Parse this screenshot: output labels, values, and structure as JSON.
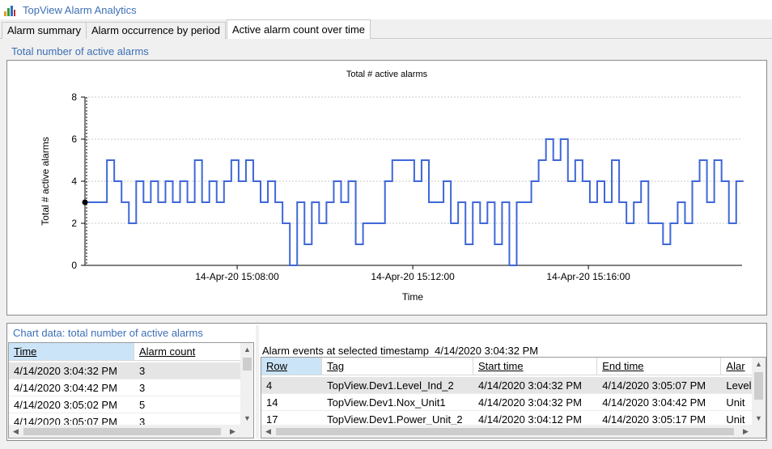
{
  "app": {
    "title": "TopView Alarm Analytics",
    "icon": "bar-chart-icon"
  },
  "tabs": [
    {
      "label": "Alarm summary",
      "active": false
    },
    {
      "label": "Alarm occurrence by period",
      "active": false
    },
    {
      "label": "Active alarm count over time",
      "active": true
    }
  ],
  "chart_section": {
    "label": "Total number of active alarms"
  },
  "chart_data": {
    "type": "line",
    "title": "Total # active alarms",
    "xlabel": "Time",
    "ylabel": "Total # active alarms",
    "ylim": [
      0,
      8
    ],
    "yticks": [
      "0",
      "2",
      "4",
      "6",
      "8"
    ],
    "xtick_labels": [
      "14-Apr-20 15:08:00",
      "14-Apr-20 15:12:00",
      "14-Apr-20 15:16:00"
    ],
    "xlim": [
      "14-Apr-20 15:04:32",
      "14-Apr-20 15:19:30"
    ],
    "grid": true,
    "step": true,
    "series": [
      {
        "color": "#3f67d8",
        "x_seconds_from_start": [
          0,
          30,
          40,
          50,
          60,
          70,
          80,
          90,
          100,
          110,
          120,
          130,
          140,
          150,
          160,
          170,
          180,
          190,
          200,
          210,
          220,
          230,
          240,
          250,
          260,
          270,
          280,
          290,
          300,
          310,
          320,
          330,
          340,
          350,
          360,
          370,
          380,
          390,
          400,
          410,
          420,
          430,
          440,
          450,
          460,
          470,
          480,
          490,
          500,
          510,
          520,
          530,
          540,
          550,
          560,
          570,
          580,
          590,
          600,
          610,
          620,
          630,
          640,
          650,
          660,
          670,
          680,
          690,
          700,
          710,
          720,
          730,
          740,
          750,
          760,
          770,
          780,
          790,
          800,
          810,
          820,
          830,
          840,
          850,
          860,
          870,
          880,
          890,
          900
        ],
        "values": [
          3,
          5,
          4,
          3,
          2,
          4,
          3,
          4,
          3,
          4,
          3,
          4,
          3,
          5,
          3,
          4,
          3,
          4,
          5,
          4,
          5,
          4,
          3,
          4,
          3,
          2,
          0,
          3,
          1,
          3,
          2,
          3,
          4,
          3,
          4,
          1,
          2,
          2,
          2,
          4,
          5,
          5,
          5,
          4,
          5,
          3,
          3,
          4,
          2,
          3,
          1,
          3,
          2,
          3,
          1,
          3,
          0,
          3,
          3,
          4,
          5,
          6,
          5,
          6,
          4,
          5,
          4,
          3,
          4,
          3,
          5,
          3,
          2,
          3,
          4,
          2,
          2,
          1,
          2,
          3,
          2,
          4,
          5,
          3,
          5,
          4,
          2,
          4,
          4
        ],
        "marker_at": {
          "x_seconds_from_start": 0,
          "value": 3
        }
      }
    ],
    "cursor_time": "4/14/2020 3:04:32 PM"
  },
  "chart_table": {
    "label": "Chart data: total number of active alarms",
    "columns": [
      "Time",
      "Alarm count"
    ],
    "rows": [
      [
        "4/14/2020 3:04:32 PM",
        "3"
      ],
      [
        "4/14/2020 3:04:42 PM",
        "3"
      ],
      [
        "4/14/2020 3:05:02 PM",
        "5"
      ],
      [
        "4/14/2020 3:05:07 PM",
        "3"
      ]
    ],
    "selected_row": 0
  },
  "events": {
    "caption_prefix": "Alarm events at selected timestamp",
    "timestamp": "4/14/2020 3:04:32 PM",
    "columns": [
      "Row",
      "Tag",
      "Start time",
      "End time",
      "Alar"
    ],
    "rows": [
      [
        "4",
        "TopView.Dev1.Level_Ind_2",
        "4/14/2020 3:04:32 PM",
        "4/14/2020 3:05:07 PM",
        "Level"
      ],
      [
        "14",
        "TopView.Dev1.Nox_Unit1",
        "4/14/2020 3:04:32 PM",
        "4/14/2020 3:04:42 PM",
        "Unit"
      ],
      [
        "17",
        "TopView.Dev1.Power_Unit_2",
        "4/14/2020 3:04:12 PM",
        "4/14/2020 3:05:17 PM",
        "Unit"
      ]
    ],
    "selected_row": 0
  },
  "colors": {
    "accent": "#3c6fb6",
    "series": "#3f67d8",
    "header_selected": "#cce4f7",
    "row_selected": "#e5e5e5"
  }
}
